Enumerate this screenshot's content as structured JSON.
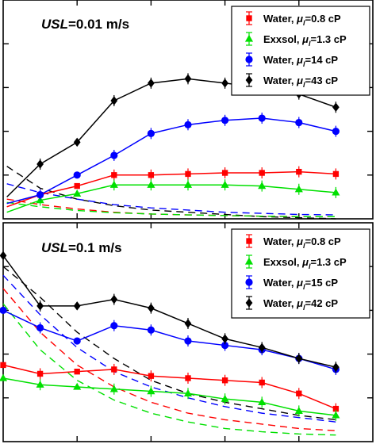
{
  "chart_data": [
    {
      "type": "line",
      "panel_label": {
        "var": "USL",
        "rest": "=0.01 m/s"
      },
      "x": [
        0.1,
        1,
        2,
        3,
        4,
        5,
        6,
        7,
        8,
        9
      ],
      "xlim": [
        0,
        10
      ],
      "ylim": [
        0,
        10
      ],
      "series": [
        {
          "name": "Water, μl=0.8 cP",
          "prefix": "Water, ",
          "sub_sym": "l",
          "suffix": "=0.8 cP",
          "color": "#ff0000",
          "marker": "square",
          "values": [
            0.55,
            1.1,
            1.5,
            2.0,
            2.0,
            2.05,
            2.1,
            2.1,
            2.15,
            2.05
          ]
        },
        {
          "name": "Exxsol, μl=1.3 cP",
          "prefix": "Exxsol, ",
          "sub_sym": "l",
          "suffix": "=1.3 cP",
          "color": "#00e000",
          "marker": "triangle",
          "values": [
            0.3,
            0.85,
            1.15,
            1.55,
            1.55,
            1.55,
            1.55,
            1.5,
            1.35,
            1.2
          ]
        },
        {
          "name": "Water, μl=14 cP",
          "prefix": "Water, ",
          "sub_sym": "l",
          "suffix": "=14 cP",
          "color": "#0000ff",
          "marker": "circle",
          "values": [
            0.7,
            1.1,
            2.0,
            2.9,
            3.9,
            4.3,
            4.5,
            4.6,
            4.4,
            4.0
          ]
        },
        {
          "name": "Water, μl=43 cP",
          "prefix": "Water, ",
          "sub_sym": "l",
          "suffix": "=43 cP",
          "color": "#000000",
          "marker": "diamond",
          "values": [
            1.0,
            2.5,
            3.5,
            5.4,
            6.2,
            6.4,
            6.2,
            6.0,
            5.7,
            5.1
          ]
        }
      ],
      "dashed_series": [
        {
          "color": "#000000",
          "values": [
            2.4,
            1.4,
            0.9,
            0.6,
            0.4,
            0.3,
            0.2,
            0.1,
            0.05,
            0.0
          ]
        },
        {
          "color": "#0000ff",
          "values": [
            1.6,
            1.2,
            0.9,
            0.65,
            0.5,
            0.4,
            0.3,
            0.25,
            0.2,
            0.18
          ]
        },
        {
          "color": "#ff0000",
          "values": [
            0.9,
            0.65,
            0.45,
            0.3,
            0.22,
            0.18,
            0.15,
            0.12,
            0.1,
            0.1
          ]
        },
        {
          "color": "#00e000",
          "values": [
            0.75,
            0.55,
            0.38,
            0.28,
            0.22,
            0.18,
            0.15,
            0.12,
            0.1,
            0.1
          ]
        }
      ],
      "legend_position": "top-right"
    },
    {
      "type": "line",
      "panel_label": {
        "var": "USL",
        "rest": "=0.1 m/s"
      },
      "x": [
        0,
        1,
        2,
        3,
        4,
        5,
        6,
        7,
        8,
        9
      ],
      "xlim": [
        0,
        10
      ],
      "ylim": [
        0,
        10
      ],
      "series": [
        {
          "name": "Water, μl=0.8 cP",
          "prefix": "Water, ",
          "sub_sym": "l",
          "suffix": "=0.8 cP",
          "color": "#ff0000",
          "marker": "square",
          "values": [
            3.5,
            3.1,
            3.2,
            3.3,
            3.0,
            2.9,
            2.8,
            2.7,
            2.2,
            1.5
          ]
        },
        {
          "name": "Exxsol, μl=1.3 cP",
          "prefix": "Exxsol, ",
          "sub_sym": "l",
          "suffix": "=1.3 cP",
          "color": "#00e000",
          "marker": "triangle",
          "values": [
            2.9,
            2.6,
            2.5,
            2.4,
            2.3,
            2.2,
            1.95,
            1.8,
            1.4,
            1.2
          ]
        },
        {
          "name": "Water, μl=15 cP",
          "prefix": "Water, ",
          "sub_sym": "l",
          "suffix": "=15 cP",
          "color": "#0000ff",
          "marker": "circle",
          "values": [
            6.0,
            5.2,
            4.6,
            5.3,
            5.1,
            4.6,
            4.4,
            4.2,
            3.8,
            3.3
          ]
        },
        {
          "name": "Water, μl=42 cP",
          "prefix": "Water, ",
          "sub_sym": "l",
          "suffix": "=42 cP",
          "color": "#000000",
          "marker": "diamond",
          "values": [
            8.5,
            6.2,
            6.2,
            6.5,
            6.1,
            5.4,
            4.7,
            4.3,
            3.8,
            3.4
          ]
        }
      ],
      "dashed_series": [
        {
          "color": "#000000",
          "values": [
            8.0,
            6.6,
            5.0,
            3.8,
            2.8,
            2.2,
            1.8,
            1.5,
            1.2,
            1.0
          ]
        },
        {
          "color": "#0000ff",
          "values": [
            7.6,
            5.8,
            4.3,
            3.2,
            2.5,
            2.0,
            1.6,
            1.3,
            1.1,
            0.9
          ]
        },
        {
          "color": "#ff0000",
          "values": [
            7.0,
            5.0,
            3.5,
            2.5,
            1.8,
            1.3,
            1.0,
            0.8,
            0.6,
            0.5
          ]
        },
        {
          "color": "#00e000",
          "values": [
            6.3,
            4.2,
            2.8,
            1.9,
            1.3,
            0.9,
            0.6,
            0.45,
            0.35,
            0.3
          ]
        }
      ],
      "legend_position": "top-right"
    }
  ]
}
